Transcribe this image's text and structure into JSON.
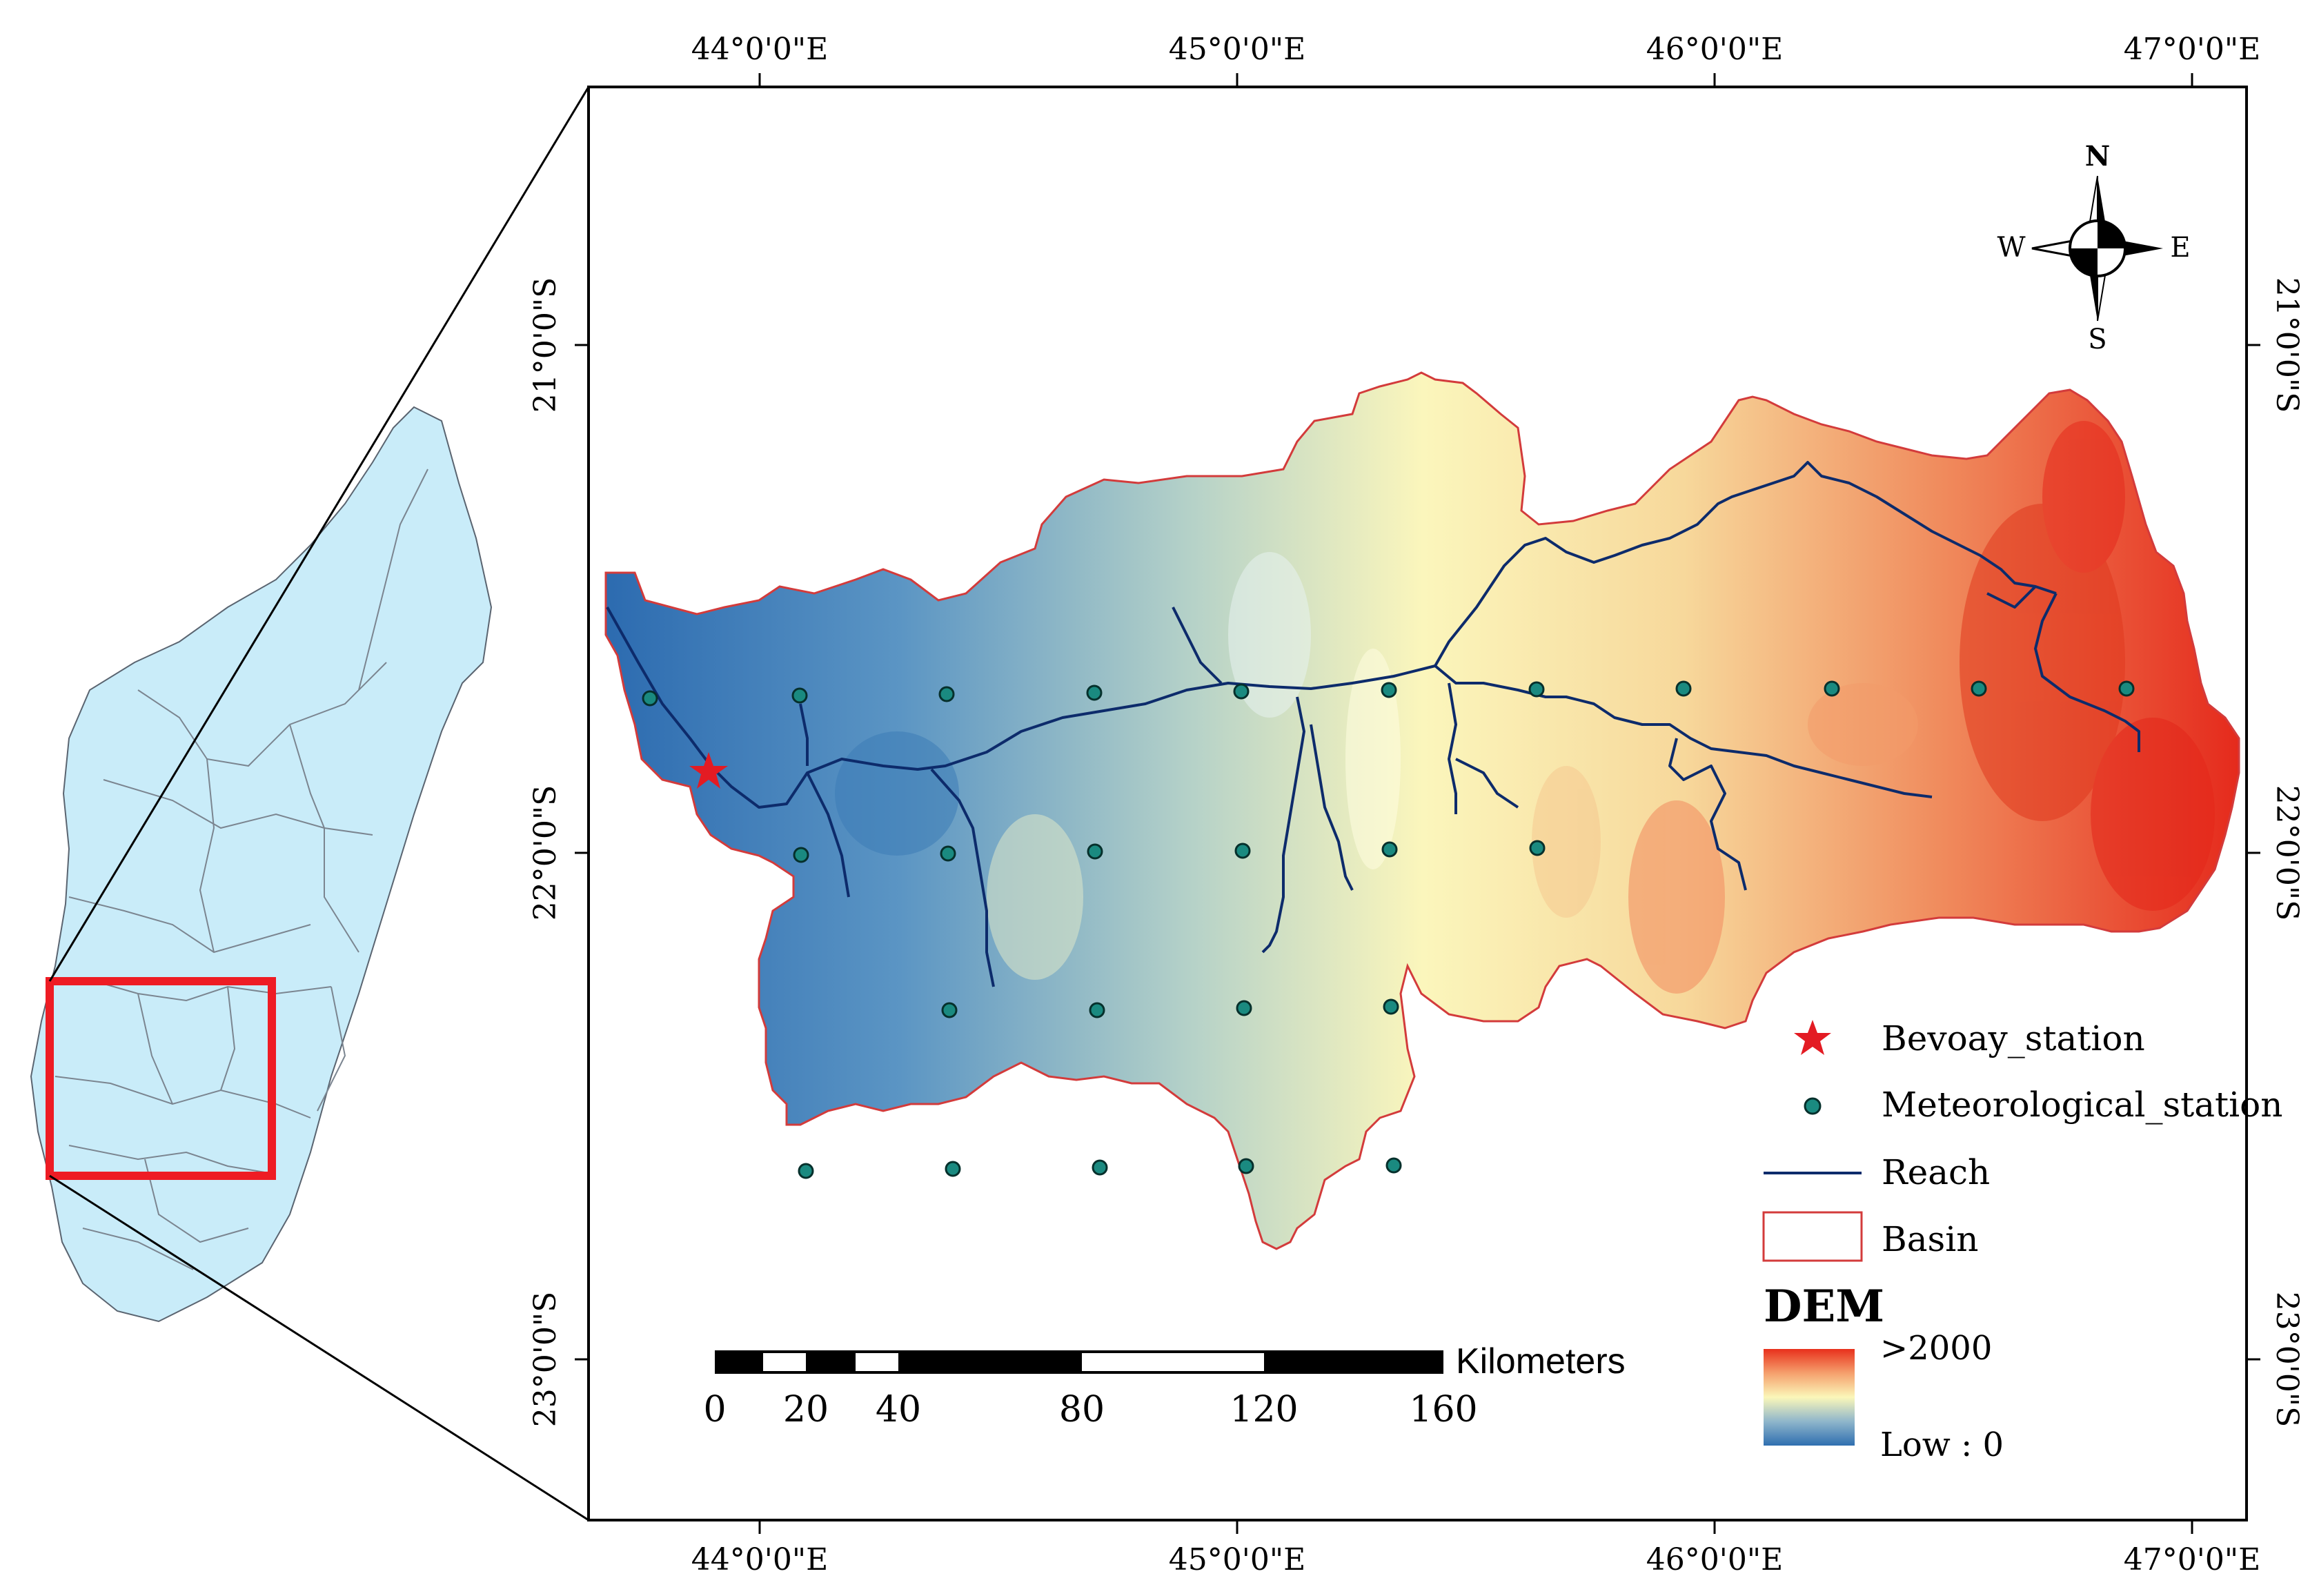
{
  "map": {
    "top_lon_labels": [
      "44°0'0\"E",
      "45°0'0\"E",
      "46°0'0\"E",
      "47°0'0\"E"
    ],
    "bottom_lon_labels": [
      "44°0'0\"E",
      "45°0'0\"E",
      "46°0'0\"E",
      "47°0'0\"E"
    ],
    "left_lat_labels": [
      "21°0'0\"S",
      "22°0'0\"S",
      "23°0'0\"S"
    ],
    "right_lat_labels": [
      "21°0'0\"S",
      "22°0'0\"S",
      "23°0'0\"S"
    ]
  },
  "compass": {
    "n": "N",
    "s": "S",
    "e": "E",
    "w": "W"
  },
  "legend": {
    "bevoay": "Bevoay_station",
    "meteo": "Meteorological_station",
    "reach": "Reach",
    "basin": "Basin",
    "dem_title": "DEM",
    "dem_high": ">2000",
    "dem_low": "Low : 0"
  },
  "scalebar": {
    "unit": "Kilometers",
    "ticks": [
      "0",
      "20",
      "40",
      "80",
      "120",
      "160"
    ]
  },
  "colors": {
    "dem_high": "#e8301c",
    "dem_mid": "#fbf7b9",
    "dem_low": "#2f6fb0",
    "basin_outline": "#d33b3b",
    "reach": "#0d2b6b",
    "station_fill": "#1a8a80",
    "bevoay": "#e31b23",
    "inset_fill": "#c9ecf9",
    "inset_box": "#ee1c24"
  }
}
